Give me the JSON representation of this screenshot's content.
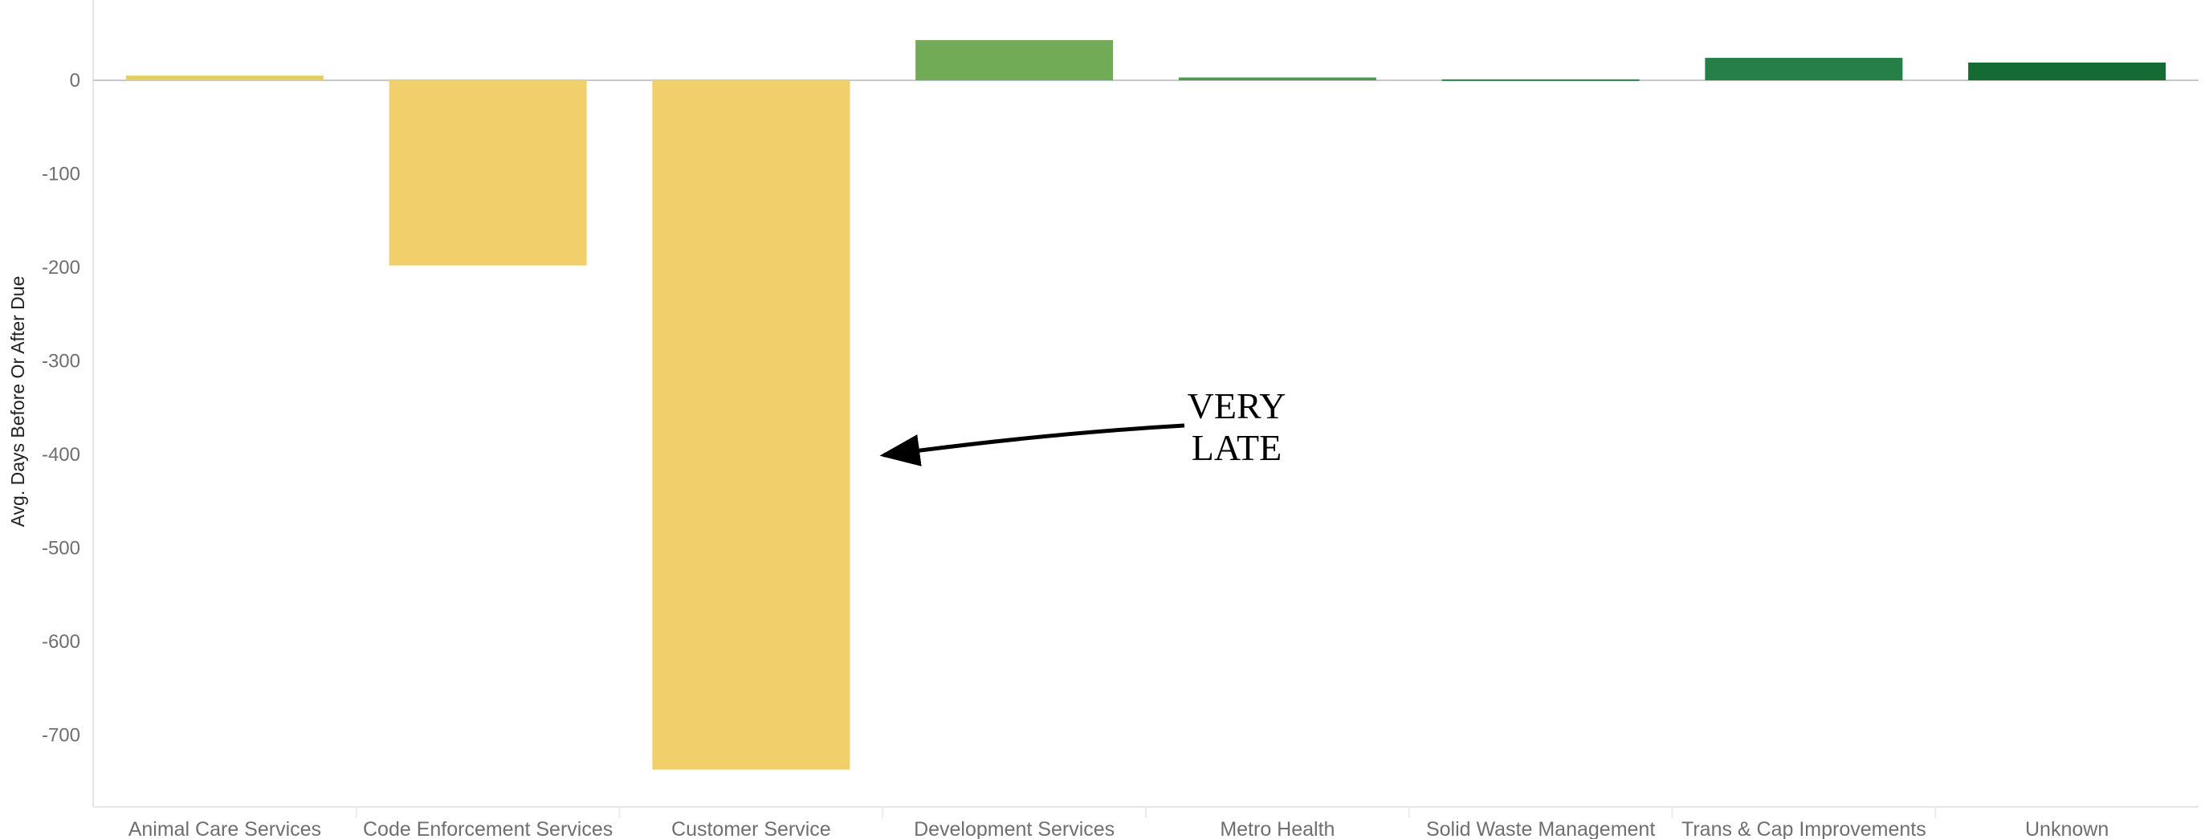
{
  "chart_data": {
    "type": "bar",
    "ylabel": "Avg. Days Before Or After Due",
    "xlabel": "",
    "ylim": [
      -780,
      85
    ],
    "yticks": [
      0,
      -100,
      -200,
      -300,
      -400,
      -500,
      -600,
      -700
    ],
    "categories": [
      "Animal Care Services",
      "Code Enforcement Services",
      "Customer Service",
      "Development Services",
      "Metro Health",
      "Solid Waste Management",
      "Trans & Cap Improvements",
      "Unknown"
    ],
    "values": [
      5,
      -198,
      -737,
      43,
      3,
      1,
      24,
      19
    ],
    "colors": [
      "#e5cd63",
      "#f1d06b",
      "#f1d06b",
      "#72ab55",
      "#4b9b4b",
      "#2e8447",
      "#277f48",
      "#146b33"
    ],
    "annotation": {
      "lines": [
        "VERY",
        "LATE"
      ],
      "target_category": "Customer Service",
      "target_value": -400
    },
    "grid": false,
    "legend": "none"
  }
}
